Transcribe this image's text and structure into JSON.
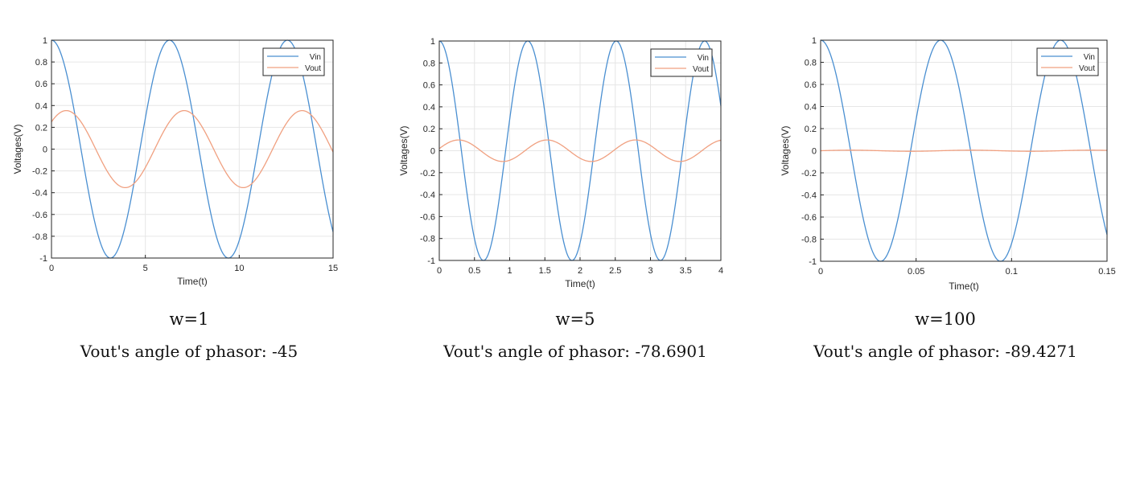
{
  "chart_data": [
    {
      "type": "line",
      "xlabel": "Time(t)",
      "ylabel": "Voltages(V)",
      "xlim": [
        0,
        15
      ],
      "ylim": [
        -1,
        1
      ],
      "xticks": [
        "0",
        "5",
        "10",
        "15"
      ],
      "yticks": [
        "-1",
        "-0.8",
        "-0.6",
        "-0.4",
        "-0.2",
        "0",
        "0.2",
        "0.4",
        "0.6",
        "0.8",
        "1"
      ],
      "grid": true,
      "legend_position": "top-right",
      "series": [
        {
          "name": "Vin",
          "color": "#4a8fd1",
          "amplitude": 1,
          "omega": 1,
          "phase_deg": 0
        },
        {
          "name": "Vout",
          "color": "#f0a080",
          "amplitude": 0.3536,
          "omega": 1,
          "phase_deg": -45
        }
      ],
      "caption_w": "w=1",
      "caption_angle": "Vout's angle of phasor: -45"
    },
    {
      "type": "line",
      "xlabel": "Time(t)",
      "ylabel": "Voltages(V)",
      "xlim": [
        0,
        4
      ],
      "ylim": [
        -1,
        1
      ],
      "xticks": [
        "0",
        "0.5",
        "1",
        "1.5",
        "2",
        "2.5",
        "3",
        "3.5",
        "4"
      ],
      "yticks": [
        "-1",
        "-0.8",
        "-0.6",
        "-0.4",
        "-0.2",
        "0",
        "0.2",
        "0.4",
        "0.6",
        "0.8",
        "1"
      ],
      "grid": true,
      "legend_position": "top-right",
      "series": [
        {
          "name": "Vin",
          "color": "#4a8fd1",
          "amplitude": 1,
          "omega": 5,
          "phase_deg": 0
        },
        {
          "name": "Vout",
          "color": "#f0a080",
          "amplitude": 0.098,
          "omega": 5,
          "phase_deg": -78.6901
        }
      ],
      "caption_w": "w=5",
      "caption_angle": "Vout's angle of phasor: -78.6901"
    },
    {
      "type": "line",
      "xlabel": "Time(t)",
      "ylabel": "Voltages(V)",
      "xlim": [
        0,
        0.15
      ],
      "ylim": [
        -1,
        1
      ],
      "xticks": [
        "0",
        "0.05",
        "0.1",
        "0.15"
      ],
      "yticks": [
        "-1",
        "-0.8",
        "-0.6",
        "-0.4",
        "-0.2",
        "0",
        "0.2",
        "0.4",
        "0.6",
        "0.8",
        "1"
      ],
      "grid": true,
      "legend_position": "top-right",
      "series": [
        {
          "name": "Vin",
          "color": "#4a8fd1",
          "amplitude": 1,
          "omega": 100,
          "phase_deg": 0
        },
        {
          "name": "Vout",
          "color": "#f0a080",
          "amplitude": 0.005,
          "omega": 100,
          "phase_deg": -89.4271
        }
      ],
      "caption_w": "w=100",
      "caption_angle": "Vout's angle of phasor: -89.4271"
    }
  ]
}
